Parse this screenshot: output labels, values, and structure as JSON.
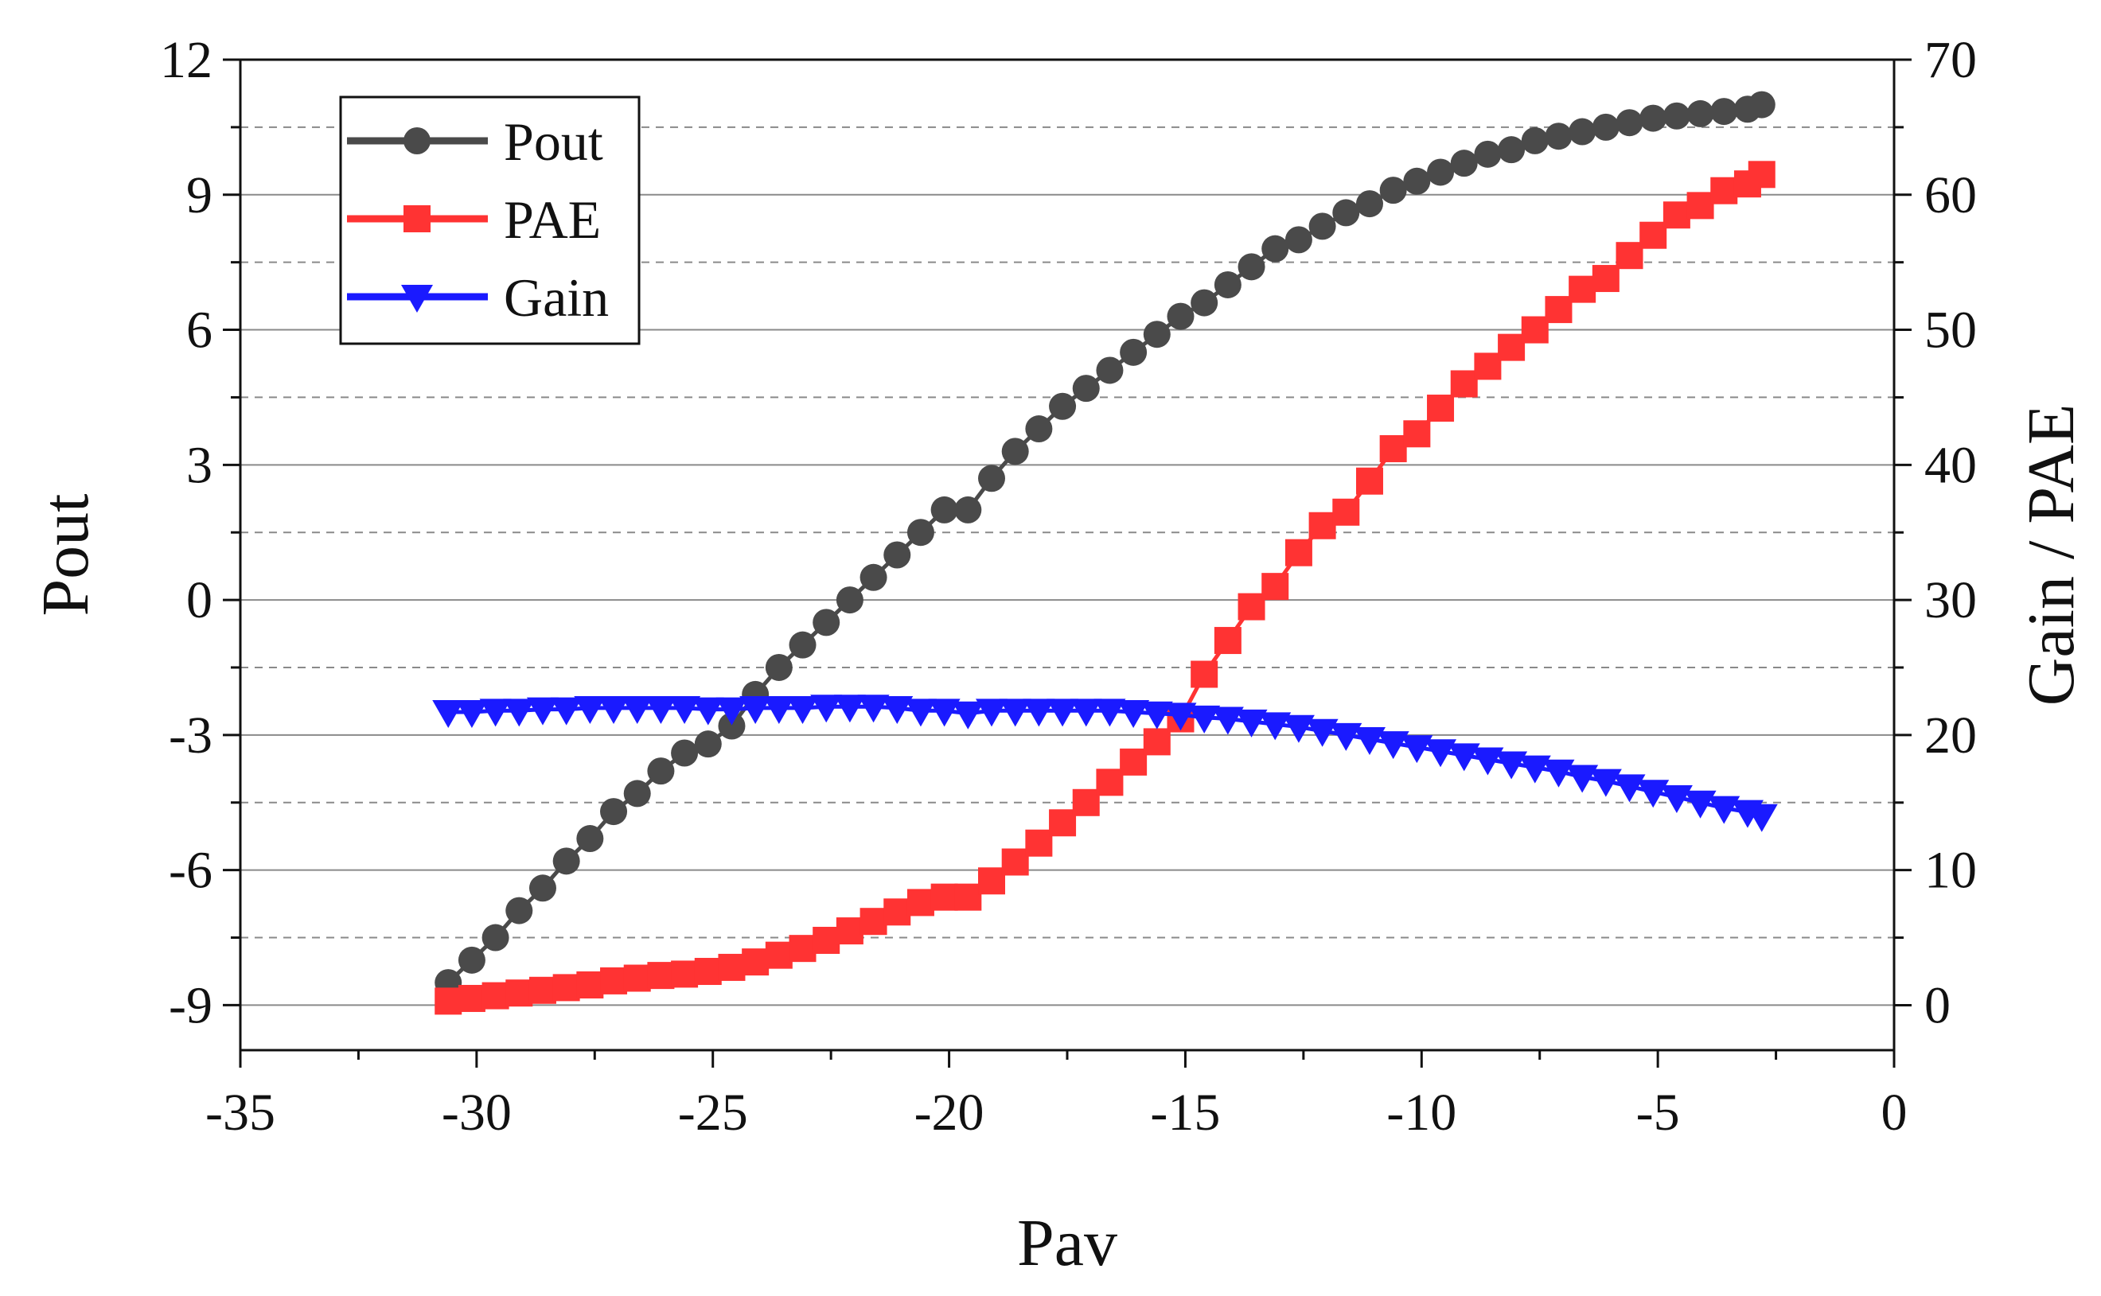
{
  "chart_data": {
    "type": "line",
    "title": "",
    "xlabel": "Pav",
    "ylabel": "Pout",
    "y2label": "Gain / PAE",
    "xlim": [
      -35,
      0
    ],
    "ylim": [
      -10,
      12
    ],
    "y2lim": [
      -3.33,
      70
    ],
    "xticks": [
      -35,
      -30,
      -25,
      -20,
      -15,
      -10,
      -5,
      0
    ],
    "xtick_labels": [
      "-35",
      "-30",
      "-25",
      "-20",
      "-15",
      "-10",
      "-5",
      "0"
    ],
    "yticks": [
      -9,
      -6,
      -3,
      0,
      3,
      6,
      9,
      12
    ],
    "ytick_labels": [
      "-9",
      "-6",
      "-3",
      "0",
      "3",
      "6",
      "9",
      "12"
    ],
    "y2ticks": [
      0,
      10,
      20,
      30,
      40,
      50,
      60,
      70
    ],
    "y2tick_labels": [
      "0",
      "10",
      "20",
      "30",
      "40",
      "50",
      "60",
      "70"
    ],
    "grid": true,
    "legend_position": "top-left",
    "x": [
      -30.6,
      -30.1,
      -29.6,
      -29.1,
      -28.6,
      -28.1,
      -27.6,
      -27.1,
      -26.6,
      -26.1,
      -25.6,
      -25.1,
      -24.6,
      -24.1,
      -23.6,
      -23.1,
      -22.6,
      -22.1,
      -21.6,
      -21.1,
      -20.6,
      -20.1,
      -19.6,
      -19.1,
      -18.6,
      -18.1,
      -17.6,
      -17.1,
      -16.6,
      -16.1,
      -15.6,
      -15.1,
      -14.6,
      -14.1,
      -13.6,
      -13.1,
      -12.6,
      -12.1,
      -11.6,
      -11.1,
      -10.6,
      -10.1,
      -9.6,
      -9.1,
      -8.6,
      -8.1,
      -7.6,
      -7.1,
      -6.6,
      -6.1,
      -5.6,
      -5.1,
      -4.6,
      -4.1,
      -3.6,
      -3.1,
      -2.8
    ],
    "series": [
      {
        "name": "Pout",
        "axis": "left",
        "color": "#4a4a4a",
        "marker": "circle",
        "values": [
          -8.5,
          -8.0,
          -7.5,
          -6.9,
          -6.4,
          -5.8,
          -5.3,
          -4.7,
          -4.3,
          -3.8,
          -3.4,
          -3.2,
          -2.8,
          -2.1,
          -1.5,
          -1.0,
          -0.5,
          0.0,
          0.5,
          1.0,
          1.5,
          2.0,
          2.0,
          2.7,
          3.3,
          3.8,
          4.3,
          4.7,
          5.1,
          5.5,
          5.9,
          6.3,
          6.6,
          7.0,
          7.4,
          7.8,
          8.0,
          8.3,
          8.6,
          8.8,
          9.1,
          9.3,
          9.5,
          9.7,
          9.9,
          10.0,
          10.2,
          10.3,
          10.4,
          10.5,
          10.6,
          10.7,
          10.75,
          10.8,
          10.85,
          10.9,
          11.0
        ]
      },
      {
        "name": "PAE",
        "axis": "right",
        "color": "#ff3333",
        "marker": "square",
        "values": [
          0.3,
          0.5,
          0.7,
          0.9,
          1.1,
          1.3,
          1.5,
          1.8,
          2.0,
          2.2,
          2.3,
          2.5,
          2.8,
          3.2,
          3.7,
          4.2,
          4.8,
          5.5,
          6.2,
          6.9,
          7.6,
          8.0,
          8.0,
          9.2,
          10.6,
          12.0,
          13.5,
          15.0,
          16.5,
          18.0,
          19.5,
          21.2,
          24.5,
          27.0,
          29.5,
          31.0,
          33.5,
          35.5,
          36.5,
          38.8,
          41.2,
          42.3,
          44.2,
          46.0,
          47.3,
          48.7,
          50.0,
          51.5,
          53.0,
          53.8,
          55.5,
          57.0,
          58.5,
          59.2,
          60.3,
          60.8,
          61.5
        ]
      },
      {
        "name": "Gain",
        "axis": "right",
        "color": "#1a1aff",
        "marker": "triangle-down",
        "values": [
          21.7,
          21.7,
          21.8,
          21.8,
          21.9,
          21.9,
          22.0,
          22.0,
          22.0,
          22.0,
          22.0,
          21.9,
          21.9,
          22.0,
          22.0,
          22.0,
          22.1,
          22.1,
          22.1,
          22.0,
          21.8,
          21.8,
          21.6,
          21.8,
          21.8,
          21.8,
          21.8,
          21.8,
          21.8,
          21.7,
          21.6,
          21.5,
          21.3,
          21.2,
          21.0,
          20.8,
          20.6,
          20.3,
          20.0,
          19.7,
          19.4,
          19.1,
          18.8,
          18.5,
          18.2,
          17.9,
          17.6,
          17.3,
          16.9,
          16.6,
          16.2,
          15.8,
          15.4,
          15.0,
          14.6,
          14.3,
          14.0
        ]
      }
    ]
  }
}
